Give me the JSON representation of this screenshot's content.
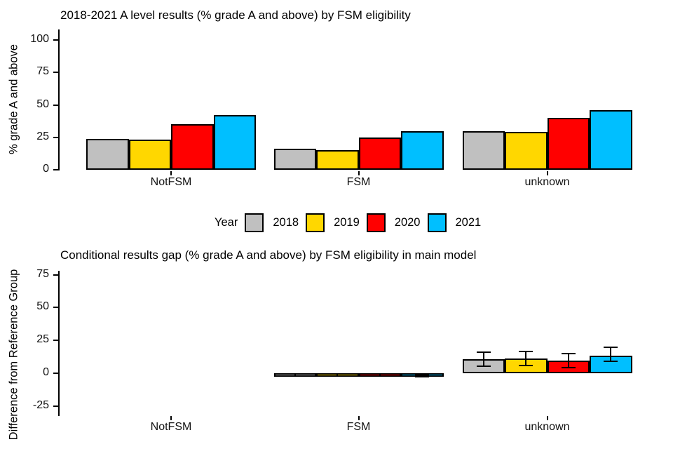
{
  "legend": {
    "title": "Year",
    "items": [
      {
        "label": "2018",
        "color": "#C0C0C0"
      },
      {
        "label": "2019",
        "color": "#FFD700"
      },
      {
        "label": "2020",
        "color": "#FF0000"
      },
      {
        "label": "2021",
        "color": "#00BFFF"
      }
    ]
  },
  "chart_data": [
    {
      "type": "bar",
      "title": "2018-2021 A level results (% grade A and above) by FSM eligibility",
      "ylabel": "% grade A and above",
      "xlabel": "",
      "categories": [
        "NotFSM",
        "FSM",
        "unknown"
      ],
      "series": [
        {
          "name": "2018",
          "color": "#C0C0C0",
          "values": [
            24,
            16,
            30
          ]
        },
        {
          "name": "2019",
          "color": "#FFD700",
          "values": [
            23,
            15,
            29
          ]
        },
        {
          "name": "2020",
          "color": "#FF0000",
          "values": [
            35,
            25,
            40
          ]
        },
        {
          "name": "2021",
          "color": "#00BFFF",
          "values": [
            42,
            30,
            46
          ]
        }
      ],
      "yticks": [
        0,
        25,
        50,
        75,
        100
      ],
      "ylim": [
        0,
        105
      ],
      "grid": false,
      "legend_position": "bottom"
    },
    {
      "type": "bar",
      "title": "Conditional results gap (% grade A and above) by FSM eligibility in main model",
      "ylabel": "Difference from Reference Group",
      "xlabel": "",
      "categories": [
        "NotFSM",
        "FSM",
        "unknown"
      ],
      "series": [
        {
          "name": "2018",
          "color": "#C0C0C0",
          "values": [
            null,
            -1.4,
            10.5
          ],
          "ci_low": [
            null,
            -2.3,
            5.5
          ],
          "ci_high": [
            null,
            -0.6,
            16
          ]
        },
        {
          "name": "2019",
          "color": "#FFD700",
          "values": [
            null,
            -1.2,
            11
          ],
          "ci_low": [
            null,
            -2.0,
            6
          ],
          "ci_high": [
            null,
            -0.5,
            16.5
          ]
        },
        {
          "name": "2020",
          "color": "#FF0000",
          "values": [
            null,
            -1.5,
            9.5
          ],
          "ci_low": [
            null,
            -2.4,
            4.5
          ],
          "ci_high": [
            null,
            -0.7,
            15
          ]
        },
        {
          "name": "2021",
          "color": "#00BFFF",
          "values": [
            null,
            -2.0,
            13.5
          ],
          "ci_low": [
            null,
            -2.9,
            9
          ],
          "ci_high": [
            null,
            -1.2,
            19.5
          ]
        }
      ],
      "yticks": [
        -25,
        0,
        25,
        50,
        75
      ],
      "ylim": [
        -32,
        77
      ],
      "grid": false,
      "error_bars": true,
      "reference_group": "NotFSM"
    }
  ]
}
